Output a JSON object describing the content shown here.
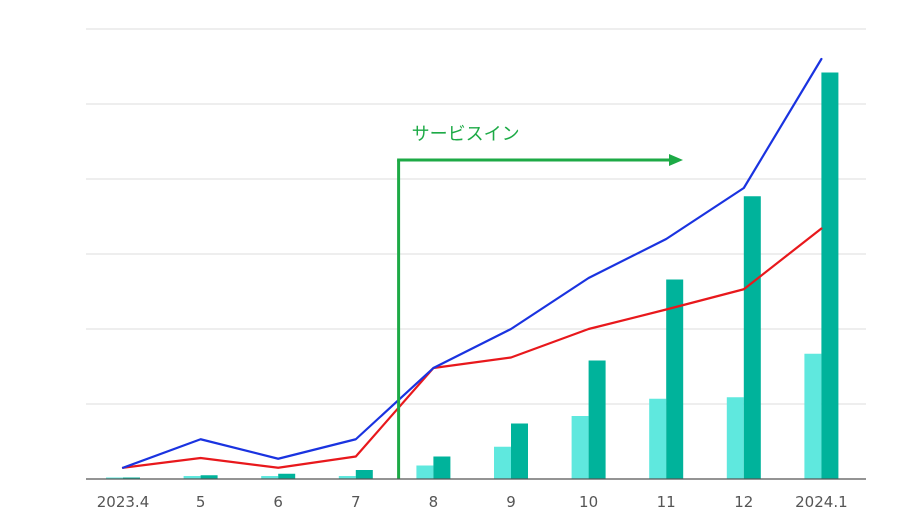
{
  "chart_data": {
    "type": "bar",
    "title": "",
    "xlabel": "",
    "ylabel": "",
    "categories": [
      "2023.4",
      "5",
      "6",
      "7",
      "8",
      "9",
      "10",
      "11",
      "12",
      "2024.1"
    ],
    "ylim": [
      0,
      600
    ],
    "grid": true,
    "series": [
      {
        "type": "bar",
        "values": [
          2,
          4,
          4,
          4,
          18,
          43,
          84,
          107,
          109,
          167
        ],
        "color": "#5fe8de"
      },
      {
        "type": "bar",
        "values": [
          2,
          5,
          7,
          12,
          30,
          74,
          158,
          266,
          377,
          542
        ],
        "color": "#00b39b"
      },
      {
        "type": "line",
        "values": [
          15,
          28,
          15,
          30,
          148,
          162,
          200,
          226,
          253,
          334
        ],
        "color": "#e8181c"
      },
      {
        "type": "line",
        "values": [
          15,
          53,
          27,
          53,
          148,
          200,
          268,
          320,
          388,
          560
        ],
        "color": "#1a33e0"
      }
    ],
    "annotation": {
      "text": "サービスイン",
      "color": "#1daa46",
      "position_between": [
        "7",
        "8"
      ]
    }
  }
}
